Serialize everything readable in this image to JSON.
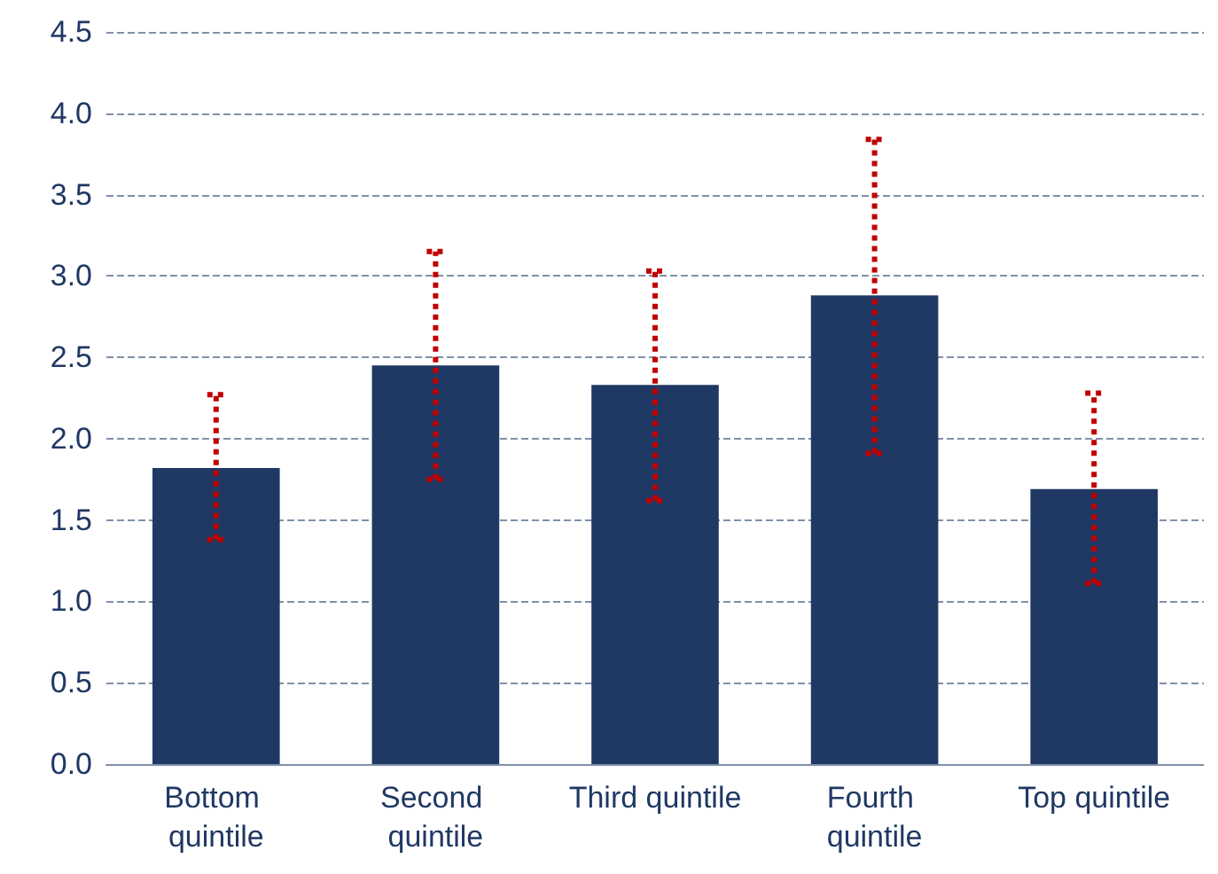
{
  "chart_data": {
    "type": "bar",
    "categories": [
      "Bottom quintile",
      "Second quintile",
      "Third quintile",
      "Fourth quintile",
      "Top quintile"
    ],
    "values": [
      1.82,
      2.45,
      2.33,
      2.88,
      1.69
    ],
    "color": "#203864",
    "errors": [
      [
        1.38,
        2.27
      ],
      [
        1.75,
        3.15
      ],
      [
        1.62,
        3.03
      ],
      [
        1.91,
        3.84
      ],
      [
        1.11,
        2.28
      ]
    ],
    "ylim": [
      0,
      4.5
    ],
    "yticks": [
      {
        "value": 0,
        "label": "0.0"
      },
      0.5,
      {
        "value": 1,
        "label": "1.0"
      },
      1.5,
      {
        "value": 2,
        "label": "2.0"
      },
      2.5,
      {
        "value": 3,
        "label": "3.0"
      },
      3.5,
      {
        "value": 4,
        "label": "4.0"
      },
      4.5
    ],
    "grid": "y"
  }
}
